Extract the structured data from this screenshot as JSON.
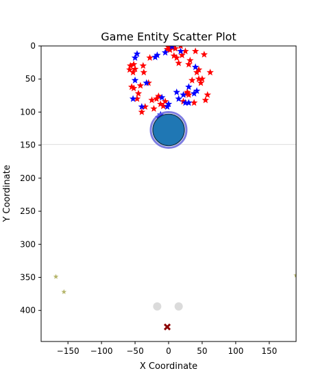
{
  "chart_data": {
    "type": "scatter",
    "title": "Game Entity Scatter Plot",
    "xlabel": "X Coordinate",
    "ylabel": "Y Coordinate",
    "xlim": [
      -190,
      190
    ],
    "ylim": [
      447,
      0
    ],
    "y_inverted": true,
    "grid": false,
    "legend": "none",
    "x_ticks": [
      -150,
      -100,
      -50,
      0,
      50,
      100,
      150
    ],
    "y_ticks": [
      0,
      50,
      100,
      150,
      200,
      250,
      300,
      350,
      400
    ],
    "horizontal_line": {
      "y": 149,
      "color": "#dddddd"
    },
    "colors": {
      "red_star": "#ff0000",
      "blue_star": "#0000ff",
      "olive_star": "#b5b56a",
      "circle_fill": "#1f77b4",
      "circle_ring": "#6666dd",
      "grey_dot": "#cccccc",
      "x_marker": "#8b0000"
    },
    "series": [
      {
        "marker": "star",
        "color": "#ff0000",
        "points": [
          [
            -55,
            62
          ],
          [
            -58,
            36
          ],
          [
            -53,
            40
          ],
          [
            -52,
            28
          ],
          [
            -50,
            35
          ],
          [
            -47,
            80
          ],
          [
            -42,
            60
          ],
          [
            -38,
            30
          ],
          [
            -37,
            40
          ],
          [
            -35,
            92
          ],
          [
            -30,
            56
          ],
          [
            -28,
            18
          ],
          [
            -22,
            95
          ],
          [
            -18,
            80
          ],
          [
            -15,
            76
          ],
          [
            -12,
            88
          ],
          [
            -8,
            91
          ],
          [
            -5,
            84
          ],
          [
            -2,
            5
          ],
          [
            0,
            2
          ],
          [
            2,
            6
          ],
          [
            5,
            2
          ],
          [
            8,
            15
          ],
          [
            10,
            4
          ],
          [
            12,
            18
          ],
          [
            15,
            26
          ],
          [
            18,
            0
          ],
          [
            20,
            14
          ],
          [
            22,
            84
          ],
          [
            25,
            8
          ],
          [
            28,
            70
          ],
          [
            30,
            28
          ],
          [
            32,
            22
          ],
          [
            35,
            52
          ],
          [
            38,
            86
          ],
          [
            40,
            8
          ],
          [
            42,
            40
          ],
          [
            45,
            36
          ],
          [
            48,
            56
          ],
          [
            50,
            50
          ],
          [
            53,
            13
          ],
          [
            55,
            82
          ],
          [
            58,
            74
          ],
          [
            62,
            40
          ],
          [
            -45,
            72
          ],
          [
            -40,
            100
          ],
          [
            -25,
            82
          ],
          [
            28,
            72
          ],
          [
            30,
            74
          ],
          [
            -57,
            30
          ],
          [
            -52,
            64
          ],
          [
            45,
            50
          ]
        ]
      },
      {
        "marker": "star",
        "color": "#0000ff",
        "points": [
          [
            -50,
            18
          ],
          [
            -47,
            12
          ],
          [
            -53,
            80
          ],
          [
            -50,
            52
          ],
          [
            -40,
            92
          ],
          [
            -33,
            56
          ],
          [
            -20,
            17
          ],
          [
            -17,
            14
          ],
          [
            -15,
            108
          ],
          [
            -12,
            104
          ],
          [
            -10,
            78
          ],
          [
            -2,
            92
          ],
          [
            0,
            88
          ],
          [
            5,
            1
          ],
          [
            12,
            70
          ],
          [
            15,
            80
          ],
          [
            18,
            8
          ],
          [
            22,
            74
          ],
          [
            25,
            86
          ],
          [
            30,
            86
          ],
          [
            38,
            72
          ],
          [
            40,
            32
          ],
          [
            42,
            68
          ],
          [
            30,
            62
          ],
          [
            -5,
            10
          ]
        ]
      },
      {
        "marker": "star",
        "color": "#b5b56a",
        "points": [
          [
            -168,
            349
          ],
          [
            -156,
            372
          ],
          [
            190,
            347
          ]
        ]
      },
      {
        "marker": "circle",
        "color": "#1f77b4",
        "points": [
          [
            0,
            127
          ]
        ]
      },
      {
        "marker": "dot",
        "color": "#cccccc",
        "points": [
          [
            -17,
            394
          ],
          [
            15,
            394
          ]
        ]
      },
      {
        "marker": "x",
        "color": "#8b0000",
        "points": [
          [
            -2,
            425
          ]
        ]
      }
    ]
  }
}
